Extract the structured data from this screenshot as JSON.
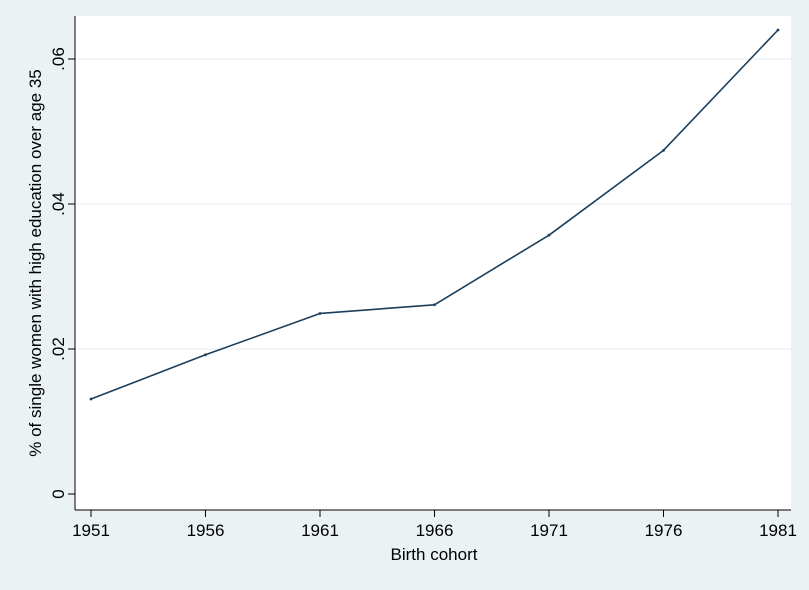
{
  "chart_data": {
    "type": "line",
    "title": "",
    "xlabel": "Birth cohort",
    "ylabel": "% of single women with high education over age 35",
    "x": [
      1951,
      1956,
      1961,
      1966,
      1971,
      1976,
      1981
    ],
    "xticks": [
      "1951",
      "1956",
      "1961",
      "1966",
      "1971",
      "1976",
      "1981"
    ],
    "yticks": [
      {
        "value": 0,
        "label": "0"
      },
      {
        "value": 0.02,
        "label": ".02"
      },
      {
        "value": 0.04,
        "label": ".04"
      },
      {
        "value": 0.06,
        "label": ".06"
      }
    ],
    "series": [
      {
        "values": [
          0.0131,
          0.0192,
          0.0249,
          0.0261,
          0.0357,
          0.0474,
          0.064
        ]
      }
    ],
    "xlim": [
      1951,
      1981
    ],
    "ylim": [
      0,
      0.064
    ],
    "grid": "horizontal",
    "legend": "none"
  },
  "colors": {
    "background": "#eaf2f3",
    "plot_area": "#ffffff",
    "line": "#1b3f5c",
    "gridline": "#e6eef0",
    "axis": "#000000"
  }
}
